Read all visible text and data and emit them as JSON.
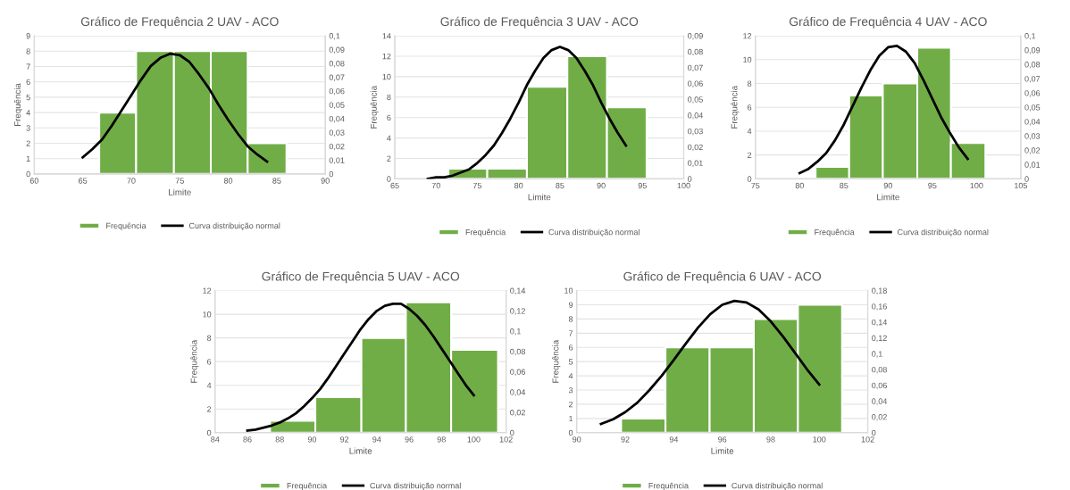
{
  "chart_data": [
    {
      "type": "histogram",
      "title": "Gráfico de Frequência 2 UAV - ACO",
      "xlabel": "Limite",
      "ylabel": "Frequência",
      "xlim": [
        60,
        90
      ],
      "xticks": [
        60,
        65,
        70,
        75,
        80,
        85,
        90
      ],
      "ylim": [
        0,
        9
      ],
      "yticks": [
        0,
        1,
        2,
        3,
        4,
        5,
        6,
        7,
        8,
        9
      ],
      "y2lim": [
        0,
        0.1
      ],
      "y2ticks": [
        0,
        {
          "value": 0.01,
          "label": "0,01"
        },
        {
          "value": 0.02,
          "label": "0,02"
        },
        {
          "value": 0.03,
          "label": "0,03"
        },
        {
          "value": 0.04,
          "label": "0,04"
        },
        {
          "value": 0.05,
          "label": "0,05"
        },
        {
          "value": 0.06,
          "label": "0,06"
        },
        {
          "value": 0.07,
          "label": "0,07"
        },
        {
          "value": 0.08,
          "label": "0,08"
        },
        {
          "value": 0.09,
          "label": "0,09"
        },
        {
          "value": 0.1,
          "label": "0,1"
        }
      ],
      "grid": "y",
      "legend": "bottom",
      "series": [
        {
          "name": "Frequência",
          "color": "#70ad47",
          "bins": [
            66.7,
            70.5,
            74.4,
            78.2,
            82.0,
            86.0
          ],
          "values": [
            4,
            8,
            8,
            8,
            2
          ]
        },
        {
          "name": "Curva distribuição normal",
          "type": "line",
          "axis": "y2",
          "color": "#000000",
          "x": [
            65,
            66,
            67,
            68,
            69,
            70,
            71,
            72,
            73,
            74,
            75,
            76,
            77,
            78,
            79,
            80,
            81,
            82,
            83,
            84
          ],
          "values": [
            0.012,
            0.018,
            0.025,
            0.035,
            0.046,
            0.057,
            0.068,
            0.078,
            0.084,
            0.087,
            0.086,
            0.081,
            0.072,
            0.062,
            0.05,
            0.039,
            0.029,
            0.02,
            0.014,
            0.009
          ]
        }
      ]
    },
    {
      "type": "histogram",
      "title": "Gráfico de Frequência 3 UAV - ACO",
      "xlabel": "Limite",
      "ylabel": "Frequência",
      "xlim": [
        65,
        100
      ],
      "xticks": [
        65,
        70,
        75,
        80,
        85,
        90,
        95,
        100
      ],
      "ylim": [
        0,
        14
      ],
      "yticks": [
        0,
        2,
        4,
        6,
        8,
        10,
        12,
        14
      ],
      "y2lim": [
        0,
        0.09
      ],
      "y2ticks": [
        0,
        {
          "value": 0.01,
          "label": "0,01"
        },
        {
          "value": 0.02,
          "label": "0,02"
        },
        {
          "value": 0.03,
          "label": "0,03"
        },
        {
          "value": 0.04,
          "label": "0,04"
        },
        {
          "value": 0.05,
          "label": "0,05"
        },
        {
          "value": 0.06,
          "label": "0,06"
        },
        {
          "value": 0.07,
          "label": "0,07"
        },
        {
          "value": 0.08,
          "label": "0,08"
        },
        {
          "value": 0.09,
          "label": "0,09"
        }
      ],
      "grid": "y",
      "legend": "bottom",
      "series": [
        {
          "name": "Frequência",
          "color": "#70ad47",
          "bins": [
            71.5,
            76.2,
            81.0,
            85.9,
            90.7,
            95.5
          ],
          "values": [
            1,
            1,
            9,
            12,
            7
          ]
        },
        {
          "name": "Curva distribuição normal",
          "type": "line",
          "axis": "y2",
          "color": "#000000",
          "x": [
            69,
            70,
            71,
            72,
            73,
            74,
            75,
            76,
            77,
            78,
            79,
            80,
            81,
            82,
            83,
            84,
            85,
            86,
            87,
            88,
            89,
            90,
            91,
            92,
            93
          ],
          "values": [
            0.0,
            0.001,
            0.001,
            0.002,
            0.004,
            0.006,
            0.01,
            0.015,
            0.021,
            0.029,
            0.038,
            0.048,
            0.059,
            0.068,
            0.076,
            0.081,
            0.083,
            0.081,
            0.076,
            0.068,
            0.059,
            0.048,
            0.038,
            0.029,
            0.021
          ]
        }
      ]
    },
    {
      "type": "histogram",
      "title": "Gráfico de Frequência 4 UAV - ACO",
      "xlabel": "Limite",
      "ylabel": "Frequência",
      "xlim": [
        75,
        105
      ],
      "xticks": [
        75,
        80,
        85,
        90,
        95,
        100,
        105
      ],
      "ylim": [
        0,
        12
      ],
      "yticks": [
        0,
        2,
        4,
        6,
        8,
        10,
        12
      ],
      "y2lim": [
        0,
        0.1
      ],
      "y2ticks": [
        0,
        {
          "value": 0.01,
          "label": "0,01"
        },
        {
          "value": 0.02,
          "label": "0,02"
        },
        {
          "value": 0.03,
          "label": "0,03"
        },
        {
          "value": 0.04,
          "label": "0,04"
        },
        {
          "value": 0.05,
          "label": "0,05"
        },
        {
          "value": 0.06,
          "label": "0,06"
        },
        {
          "value": 0.07,
          "label": "0,07"
        },
        {
          "value": 0.08,
          "label": "0,08"
        },
        {
          "value": 0.09,
          "label": "0,09"
        },
        {
          "value": 0.1,
          "label": "0,1"
        }
      ],
      "grid": "y",
      "legend": "bottom",
      "series": [
        {
          "name": "Frequência",
          "color": "#70ad47",
          "bins": [
            81.8,
            85.6,
            89.4,
            93.3,
            97.1,
            101.0
          ],
          "values": [
            1,
            7,
            8,
            11,
            3
          ]
        },
        {
          "name": "Curva distribuição normal",
          "type": "line",
          "axis": "y2",
          "color": "#000000",
          "x": [
            80,
            81,
            82,
            83,
            84,
            85,
            86,
            87,
            88,
            89,
            90,
            91,
            92,
            93,
            94,
            95,
            96,
            97,
            98,
            99
          ],
          "values": [
            0.004,
            0.007,
            0.012,
            0.018,
            0.027,
            0.038,
            0.051,
            0.064,
            0.076,
            0.086,
            0.092,
            0.093,
            0.089,
            0.081,
            0.069,
            0.056,
            0.043,
            0.032,
            0.022,
            0.014
          ]
        }
      ]
    },
    {
      "type": "histogram",
      "title": "Gráfico de Frequência 5 UAV - ACO",
      "xlabel": "Limite",
      "ylabel": "Frequência",
      "xlim": [
        84,
        102
      ],
      "xticks": [
        84,
        86,
        88,
        90,
        92,
        94,
        96,
        98,
        100,
        102
      ],
      "ylim": [
        0,
        12
      ],
      "yticks": [
        0,
        2,
        4,
        6,
        8,
        10,
        12
      ],
      "y2lim": [
        0,
        0.14
      ],
      "y2ticks": [
        0,
        {
          "value": 0.02,
          "label": "0,02"
        },
        {
          "value": 0.04,
          "label": "0,04"
        },
        {
          "value": 0.06,
          "label": "0,06"
        },
        {
          "value": 0.08,
          "label": "0,08"
        },
        {
          "value": 0.1,
          "label": "0,1"
        },
        {
          "value": 0.12,
          "label": "0,12"
        },
        {
          "value": 0.14,
          "label": "0,14"
        }
      ],
      "grid": "y",
      "legend": "bottom",
      "series": [
        {
          "name": "Frequência",
          "color": "#70ad47",
          "bins": [
            87.4,
            90.2,
            93.05,
            95.8,
            98.6,
            101.5
          ],
          "values": [
            1,
            3,
            8,
            11,
            7
          ]
        },
        {
          "name": "Curva distribuição normal",
          "type": "line",
          "axis": "y2",
          "color": "#000000",
          "x": [
            86,
            86.5,
            87,
            87.5,
            88,
            88.5,
            89,
            89.5,
            90,
            90.5,
            91,
            91.5,
            92,
            92.5,
            93,
            93.5,
            94,
            94.5,
            95,
            95.5,
            96,
            96.5,
            97,
            97.5,
            98,
            98.5,
            99,
            99.5,
            100
          ],
          "values": [
            0.002,
            0.003,
            0.005,
            0.007,
            0.01,
            0.014,
            0.019,
            0.026,
            0.034,
            0.043,
            0.054,
            0.066,
            0.078,
            0.09,
            0.102,
            0.112,
            0.12,
            0.125,
            0.127,
            0.127,
            0.122,
            0.115,
            0.106,
            0.095,
            0.083,
            0.071,
            0.059,
            0.047,
            0.037
          ]
        }
      ]
    },
    {
      "type": "histogram",
      "title": "Gráfico de Frequência 6 UAV - ACO",
      "xlabel": "Limite",
      "ylabel": "Frequência",
      "xlim": [
        90,
        102
      ],
      "xticks": [
        90,
        92,
        94,
        96,
        98,
        100,
        102
      ],
      "ylim": [
        0,
        10
      ],
      "yticks": [
        0,
        1,
        2,
        3,
        4,
        5,
        6,
        7,
        8,
        9,
        10
      ],
      "y2lim": [
        0,
        0.18
      ],
      "y2ticks": [
        0,
        {
          "value": 0.02,
          "label": "0,02"
        },
        {
          "value": 0.04,
          "label": "0,04"
        },
        {
          "value": 0.06,
          "label": "0,06"
        },
        {
          "value": 0.08,
          "label": "0,08"
        },
        {
          "value": 0.1,
          "label": "0,1"
        },
        {
          "value": 0.12,
          "label": "0,12"
        },
        {
          "value": 0.14,
          "label": "0,14"
        },
        {
          "value": 0.16,
          "label": "0,16"
        },
        {
          "value": 0.18,
          "label": "0,18"
        }
      ],
      "grid": "y",
      "legend": "bottom",
      "series": [
        {
          "name": "Frequência",
          "color": "#70ad47",
          "bins": [
            91.83,
            93.66,
            95.48,
            97.3,
            99.12,
            100.94
          ],
          "values": [
            1,
            6,
            6,
            8,
            9
          ]
        },
        {
          "name": "Curva distribuição normal",
          "type": "line",
          "axis": "y2",
          "color": "#000000",
          "x": [
            91,
            91.5,
            92,
            92.5,
            93,
            93.5,
            94,
            94.5,
            95,
            95.5,
            96,
            96.5,
            97,
            97.5,
            98,
            98.5,
            99,
            99.5,
            100
          ],
          "values": [
            0.011,
            0.017,
            0.026,
            0.038,
            0.054,
            0.072,
            0.092,
            0.113,
            0.133,
            0.15,
            0.162,
            0.167,
            0.165,
            0.156,
            0.141,
            0.122,
            0.101,
            0.08,
            0.061
          ]
        }
      ]
    }
  ]
}
